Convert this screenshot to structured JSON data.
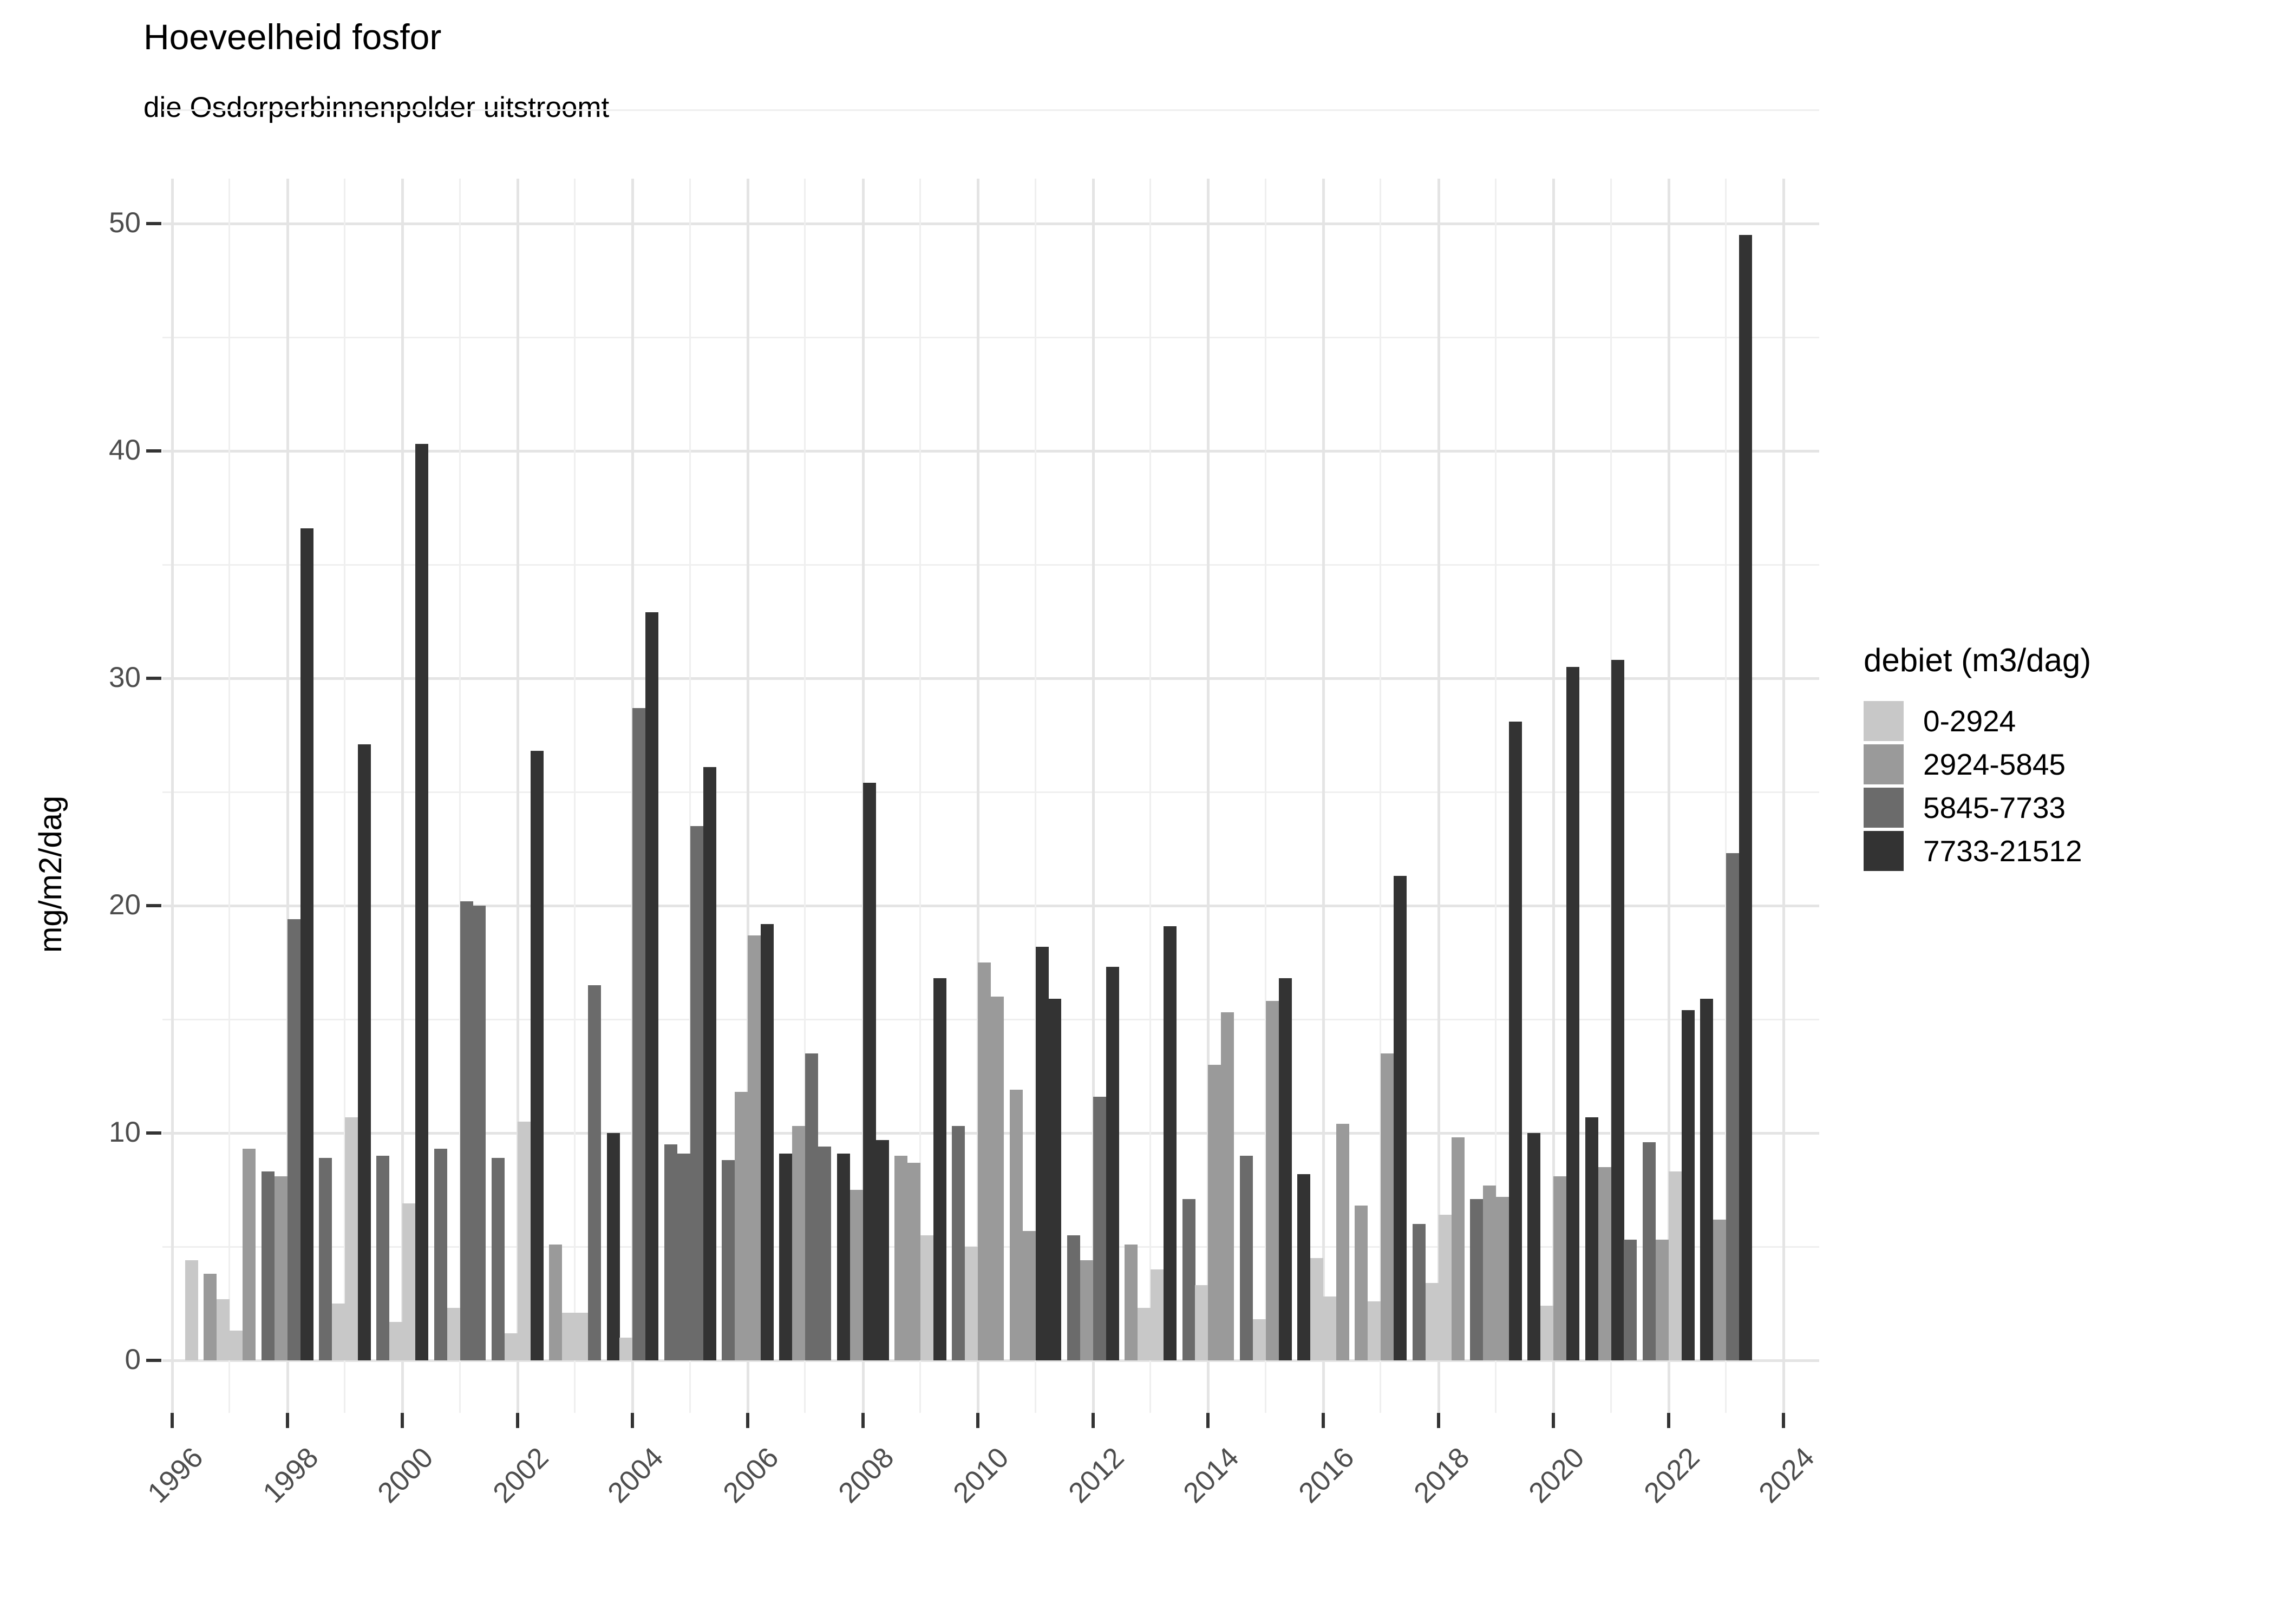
{
  "title": "Hoeveelheid fosfor",
  "subtitle": "die Osdorperbinnenpolder uitstroomt",
  "y_axis": {
    "title": "mg/m2/dag",
    "ticks": [
      0,
      10,
      20,
      30,
      40,
      50
    ]
  },
  "x_axis": {
    "tick_years": [
      1996,
      1998,
      2000,
      2002,
      2004,
      2006,
      2008,
      2010,
      2012,
      2014,
      2016,
      2018,
      2020,
      2022,
      2024
    ]
  },
  "legend": {
    "title": "debiet (m3/dag)",
    "bins": [
      {
        "label": "0-2924",
        "color": "#C8C8C8"
      },
      {
        "label": "2924-5845",
        "color": "#9A9A9A"
      },
      {
        "label": "5845-7733",
        "color": "#6B6B6B"
      },
      {
        "label": "7733-21512",
        "color": "#333333"
      }
    ]
  },
  "chart_data": {
    "type": "bar",
    "title": "Hoeveelheid fosfor",
    "subtitle": "die Osdorperbinnenpolder uitstroomt",
    "ylabel": "mg/m2/dag",
    "ylim": [
      0,
      50
    ],
    "grid": "on",
    "legend_position": "right",
    "group_slots": 4,
    "bin_labels": [
      "0-2924",
      "2924-5845",
      "5845-7733",
      "7733-21512"
    ],
    "years": [
      {
        "year": 1996,
        "bars": [
          {
            "slot": 4,
            "bin": 0,
            "value": 4.4
          }
        ]
      },
      {
        "year": 1997,
        "bars": [
          {
            "slot": 1,
            "bin": 1,
            "value": 3.8
          },
          {
            "slot": 2,
            "bin": 0,
            "value": 2.7
          },
          {
            "slot": 3,
            "bin": 0,
            "value": 1.3
          },
          {
            "slot": 4,
            "bin": 1,
            "value": 9.3
          }
        ]
      },
      {
        "year": 1998,
        "bars": [
          {
            "slot": 1,
            "bin": 2,
            "value": 8.3
          },
          {
            "slot": 2,
            "bin": 1,
            "value": 8.1
          },
          {
            "slot": 3,
            "bin": 2,
            "value": 19.4
          },
          {
            "slot": 4,
            "bin": 3,
            "value": 36.6
          }
        ]
      },
      {
        "year": 1999,
        "bars": [
          {
            "slot": 1,
            "bin": 2,
            "value": 8.9
          },
          {
            "slot": 2,
            "bin": 0,
            "value": 2.5
          },
          {
            "slot": 3,
            "bin": 0,
            "value": 10.7
          },
          {
            "slot": 4,
            "bin": 3,
            "value": 27.1
          }
        ]
      },
      {
        "year": 2000,
        "bars": [
          {
            "slot": 1,
            "bin": 2,
            "value": 9.0
          },
          {
            "slot": 2,
            "bin": 0,
            "value": 1.7
          },
          {
            "slot": 3,
            "bin": 0,
            "value": 6.9
          },
          {
            "slot": 4,
            "bin": 3,
            "value": 40.3
          }
        ]
      },
      {
        "year": 2001,
        "bars": [
          {
            "slot": 1,
            "bin": 2,
            "value": 9.3
          },
          {
            "slot": 2,
            "bin": 0,
            "value": 2.3
          },
          {
            "slot": 3,
            "bin": 2,
            "value": 20.2
          },
          {
            "slot": 4,
            "bin": 2,
            "value": 20.0
          }
        ]
      },
      {
        "year": 2002,
        "bars": [
          {
            "slot": 1,
            "bin": 2,
            "value": 8.9
          },
          {
            "slot": 2,
            "bin": 0,
            "value": 1.2
          },
          {
            "slot": 3,
            "bin": 0,
            "value": 10.5
          },
          {
            "slot": 4,
            "bin": 3,
            "value": 26.8
          }
        ]
      },
      {
        "year": 2003,
        "bars": [
          {
            "slot": 1,
            "bin": 1,
            "value": 5.1
          },
          {
            "slot": 2,
            "bin": 0,
            "value": 2.1
          },
          {
            "slot": 3,
            "bin": 0,
            "value": 2.1
          },
          {
            "slot": 4,
            "bin": 2,
            "value": 16.5
          }
        ]
      },
      {
        "year": 2004,
        "bars": [
          {
            "slot": 1,
            "bin": 3,
            "value": 10.0
          },
          {
            "slot": 2,
            "bin": 0,
            "value": 1.0
          },
          {
            "slot": 3,
            "bin": 2,
            "value": 28.7
          },
          {
            "slot": 4,
            "bin": 3,
            "value": 32.9
          }
        ]
      },
      {
        "year": 2005,
        "bars": [
          {
            "slot": 1,
            "bin": 2,
            "value": 9.5
          },
          {
            "slot": 2,
            "bin": 2,
            "value": 9.1
          },
          {
            "slot": 3,
            "bin": 2,
            "value": 23.5
          },
          {
            "slot": 4,
            "bin": 3,
            "value": 26.1
          }
        ]
      },
      {
        "year": 2006,
        "bars": [
          {
            "slot": 1,
            "bin": 2,
            "value": 8.8
          },
          {
            "slot": 2,
            "bin": 1,
            "value": 11.8
          },
          {
            "slot": 3,
            "bin": 1,
            "value": 18.7
          },
          {
            "slot": 4,
            "bin": 3,
            "value": 19.2
          }
        ]
      },
      {
        "year": 2007,
        "bars": [
          {
            "slot": 1,
            "bin": 3,
            "value": 9.1
          },
          {
            "slot": 2,
            "bin": 1,
            "value": 10.3
          },
          {
            "slot": 3,
            "bin": 2,
            "value": 13.5
          },
          {
            "slot": 4,
            "bin": 2,
            "value": 9.4
          }
        ]
      },
      {
        "year": 2008,
        "bars": [
          {
            "slot": 1,
            "bin": 3,
            "value": 9.1
          },
          {
            "slot": 2,
            "bin": 1,
            "value": 7.5
          },
          {
            "slot": 3,
            "bin": 3,
            "value": 25.4
          },
          {
            "slot": 4,
            "bin": 3,
            "value": 9.7
          }
        ]
      },
      {
        "year": 2009,
        "bars": [
          {
            "slot": 1,
            "bin": 1,
            "value": 9.0
          },
          {
            "slot": 2,
            "bin": 1,
            "value": 8.7
          },
          {
            "slot": 3,
            "bin": 0,
            "value": 5.5
          },
          {
            "slot": 4,
            "bin": 3,
            "value": 16.8
          }
        ]
      },
      {
        "year": 2010,
        "bars": [
          {
            "slot": 1,
            "bin": 2,
            "value": 10.3
          },
          {
            "slot": 2,
            "bin": 0,
            "value": 5.0
          },
          {
            "slot": 3,
            "bin": 1,
            "value": 17.5
          },
          {
            "slot": 4,
            "bin": 1,
            "value": 16.0
          }
        ]
      },
      {
        "year": 2011,
        "bars": [
          {
            "slot": 1,
            "bin": 1,
            "value": 11.9
          },
          {
            "slot": 2,
            "bin": 1,
            "value": 5.7
          },
          {
            "slot": 3,
            "bin": 3,
            "value": 18.2
          },
          {
            "slot": 4,
            "bin": 3,
            "value": 15.9
          }
        ]
      },
      {
        "year": 2012,
        "bars": [
          {
            "slot": 1,
            "bin": 2,
            "value": 5.5
          },
          {
            "slot": 2,
            "bin": 1,
            "value": 4.4
          },
          {
            "slot": 3,
            "bin": 2,
            "value": 11.6
          },
          {
            "slot": 4,
            "bin": 3,
            "value": 17.3
          }
        ]
      },
      {
        "year": 2013,
        "bars": [
          {
            "slot": 1,
            "bin": 1,
            "value": 5.1
          },
          {
            "slot": 2,
            "bin": 0,
            "value": 2.3
          },
          {
            "slot": 3,
            "bin": 0,
            "value": 4.0
          },
          {
            "slot": 4,
            "bin": 3,
            "value": 19.1
          }
        ]
      },
      {
        "year": 2014,
        "bars": [
          {
            "slot": 1,
            "bin": 2,
            "value": 7.1
          },
          {
            "slot": 2,
            "bin": 0,
            "value": 3.3
          },
          {
            "slot": 3,
            "bin": 1,
            "value": 13.0
          },
          {
            "slot": 4,
            "bin": 1,
            "value": 15.3
          }
        ]
      },
      {
        "year": 2015,
        "bars": [
          {
            "slot": 1,
            "bin": 2,
            "value": 9.0
          },
          {
            "slot": 2,
            "bin": 0,
            "value": 1.8
          },
          {
            "slot": 3,
            "bin": 1,
            "value": 15.8
          },
          {
            "slot": 4,
            "bin": 3,
            "value": 16.8
          }
        ]
      },
      {
        "year": 2016,
        "bars": [
          {
            "slot": 1,
            "bin": 3,
            "value": 8.2
          },
          {
            "slot": 2,
            "bin": 0,
            "value": 4.5
          },
          {
            "slot": 3,
            "bin": 0,
            "value": 2.8
          },
          {
            "slot": 4,
            "bin": 1,
            "value": 10.4
          }
        ]
      },
      {
        "year": 2017,
        "bars": [
          {
            "slot": 1,
            "bin": 1,
            "value": 6.8
          },
          {
            "slot": 2,
            "bin": 0,
            "value": 2.6
          },
          {
            "slot": 3,
            "bin": 1,
            "value": 13.5
          },
          {
            "slot": 4,
            "bin": 3,
            "value": 21.3
          }
        ]
      },
      {
        "year": 2018,
        "bars": [
          {
            "slot": 1,
            "bin": 2,
            "value": 6.0
          },
          {
            "slot": 2,
            "bin": 0,
            "value": 3.4
          },
          {
            "slot": 3,
            "bin": 0,
            "value": 6.4
          },
          {
            "slot": 4,
            "bin": 1,
            "value": 9.8
          }
        ]
      },
      {
        "year": 2019,
        "bars": [
          {
            "slot": 1,
            "bin": 2,
            "value": 7.1
          },
          {
            "slot": 2,
            "bin": 1,
            "value": 7.7
          },
          {
            "slot": 3,
            "bin": 1,
            "value": 7.2
          },
          {
            "slot": 4,
            "bin": 3,
            "value": 28.1
          }
        ]
      },
      {
        "year": 2020,
        "bars": [
          {
            "slot": 1,
            "bin": 3,
            "value": 10.0
          },
          {
            "slot": 2,
            "bin": 0,
            "value": 2.4
          },
          {
            "slot": 3,
            "bin": 1,
            "value": 8.1
          },
          {
            "slot": 4,
            "bin": 3,
            "value": 30.5
          }
        ]
      },
      {
        "year": 2021,
        "bars": [
          {
            "slot": 1,
            "bin": 3,
            "value": 10.7
          },
          {
            "slot": 2,
            "bin": 1,
            "value": 8.5
          },
          {
            "slot": 3,
            "bin": 3,
            "value": 30.8
          },
          {
            "slot": 4,
            "bin": 2,
            "value": 5.3
          }
        ]
      },
      {
        "year": 2022,
        "bars": [
          {
            "slot": 1,
            "bin": 2,
            "value": 9.6
          },
          {
            "slot": 2,
            "bin": 1,
            "value": 5.3
          },
          {
            "slot": 3,
            "bin": 0,
            "value": 8.3
          },
          {
            "slot": 4,
            "bin": 3,
            "value": 15.4
          }
        ]
      },
      {
        "year": 2023,
        "bars": [
          {
            "slot": 1,
            "bin": 3,
            "value": 15.9
          },
          {
            "slot": 2,
            "bin": 1,
            "value": 6.2
          },
          {
            "slot": 3,
            "bin": 2,
            "value": 22.3
          },
          {
            "slot": 4,
            "bin": 3,
            "value": 49.5
          }
        ]
      }
    ]
  }
}
